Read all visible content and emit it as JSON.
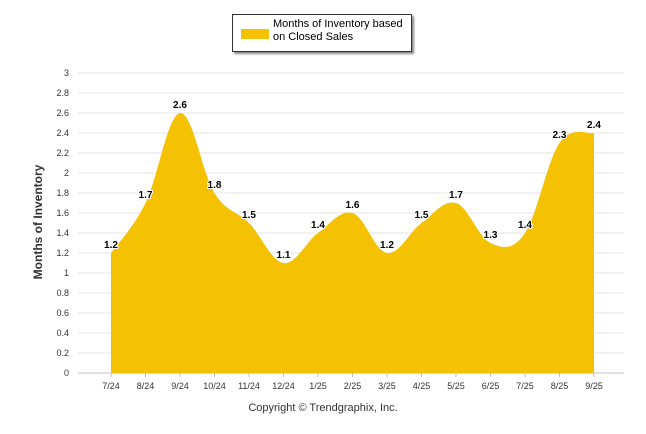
{
  "chart_data": {
    "type": "area",
    "legend": {
      "label": "Months of Inventory based on Closed Sales",
      "position": "top-center"
    },
    "ylabel": "Months of Inventory",
    "xlabel": "",
    "ylim": [
      0,
      3
    ],
    "yticks": [
      "3",
      "2.8",
      "2.6",
      "2.4",
      "2.2",
      "2",
      "1.8",
      "1.6",
      "1.4",
      "1.2",
      "1",
      "0.8",
      "0.6",
      "0.4",
      "0.2",
      "0"
    ],
    "ytick_values": [
      3,
      2.8,
      2.6,
      2.4,
      2.2,
      2,
      1.8,
      1.6,
      1.4,
      1.2,
      1,
      0.8,
      0.6,
      0.4,
      0.2,
      0
    ],
    "categories": [
      "7/24",
      "8/24",
      "9/24",
      "10/24",
      "11/24",
      "12/24",
      "1/25",
      "2/25",
      "3/25",
      "4/25",
      "5/25",
      "6/25",
      "7/25",
      "8/25",
      "9/25"
    ],
    "values": [
      1.2,
      1.7,
      2.6,
      1.8,
      1.5,
      1.1,
      1.4,
      1.6,
      1.2,
      1.5,
      1.7,
      1.3,
      1.4,
      2.3,
      2.4
    ],
    "data_labels": [
      "1.2",
      "1.7",
      "2.6",
      "1.8",
      "1.5",
      "1.1",
      "1.4",
      "1.6",
      "1.2",
      "1.5",
      "1.7",
      "1.3",
      "1.4",
      "2.3",
      "2.4"
    ],
    "grid": true,
    "fill_color": "#f5c203",
    "grid_color": "#e6e6e6"
  },
  "footer": {
    "copyright": "Copyright © Trendgraphix, Inc."
  }
}
